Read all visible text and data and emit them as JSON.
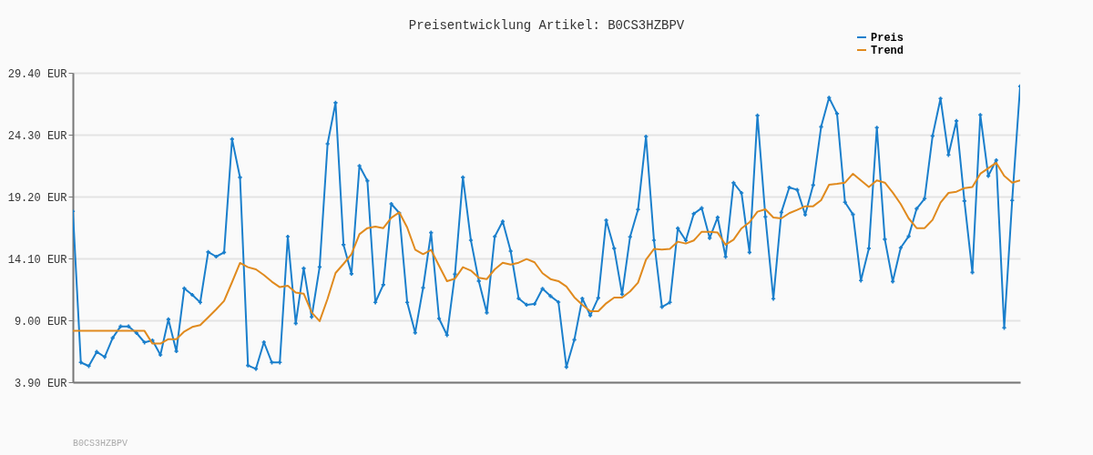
{
  "chart_data": {
    "type": "line",
    "title": "Preisentwicklung Artikel: B0CS3HZBPV",
    "categories": [
      null,
      null,
      null,
      null,
      null,
      null,
      null,
      null,
      null,
      null,
      null,
      null,
      null,
      null,
      null,
      null,
      null,
      null,
      null,
      null,
      null,
      null,
      null,
      null,
      null,
      null,
      null,
      null,
      null,
      null,
      null,
      null,
      null,
      null,
      null,
      null,
      null,
      null,
      null,
      null,
      null,
      null,
      null,
      null,
      null,
      null,
      null,
      null,
      null,
      null,
      null,
      null,
      null,
      null,
      null,
      null,
      null,
      null,
      null,
      null,
      null,
      null,
      null,
      null,
      null,
      null,
      null,
      null,
      null,
      null,
      null,
      null,
      null,
      null,
      null,
      null,
      null,
      null,
      null,
      null,
      null,
      null,
      null,
      null,
      null,
      null,
      null,
      null,
      null,
      null,
      null,
      null,
      null,
      null,
      null,
      null,
      null,
      null,
      null,
      null,
      null,
      null,
      null,
      null,
      null,
      null,
      null,
      null,
      null,
      null,
      null,
      null,
      null,
      null,
      null,
      null,
      null,
      null,
      null,
      null
    ],
    "series": [
      {
        "name": "Preis",
        "color": "#1a7fcc",
        "marker": "cross",
        "values": [
          17.98,
          5.53,
          5.23,
          6.4,
          5.98,
          7.55,
          8.5,
          8.5,
          7.95,
          7.18,
          7.35,
          6.15,
          9.08,
          6.45,
          11.63,
          11.1,
          10.48,
          14.63,
          14.25,
          14.6,
          23.93,
          20.78,
          5.28,
          5.0,
          7.2,
          5.53,
          5.53,
          15.9,
          8.75,
          13.28,
          9.28,
          13.4,
          23.55,
          26.93,
          15.23,
          12.83,
          21.73,
          20.5,
          10.48,
          11.93,
          18.6,
          17.85,
          10.48,
          7.98,
          11.68,
          16.23,
          9.15,
          7.78,
          12.8,
          20.78,
          15.6,
          12.23,
          9.63,
          15.9,
          17.15,
          14.7,
          10.8,
          10.28,
          10.35,
          11.6,
          11.0,
          10.5,
          5.15,
          7.4,
          10.8,
          9.4,
          10.85,
          17.25,
          14.93,
          11.15,
          15.88,
          18.13,
          24.15,
          15.6,
          10.1,
          10.48,
          16.58,
          15.58,
          17.78,
          18.25,
          15.78,
          17.48,
          14.23,
          20.33,
          19.5,
          14.6,
          25.88,
          17.53,
          10.78,
          17.9,
          19.95,
          19.75,
          17.7,
          20.15,
          24.95,
          27.35,
          26.03,
          18.73,
          17.73,
          12.28,
          14.93,
          24.88,
          15.68,
          12.2,
          14.98,
          15.93,
          18.2,
          19.03,
          24.2,
          27.28,
          22.63,
          25.43,
          18.83,
          12.95,
          25.93,
          20.9,
          22.2,
          8.38,
          18.88,
          28.28
        ]
      },
      {
        "name": "Trend",
        "color": "#e08a1e",
        "marker": "none",
        "values": [
          8.13,
          8.13,
          8.13,
          8.13,
          8.13,
          8.13,
          8.13,
          8.13,
          8.13,
          8.13,
          7.08,
          7.08,
          7.45,
          7.45,
          8.08,
          8.45,
          8.6,
          9.25,
          9.9,
          10.6,
          12.15,
          13.73,
          13.38,
          13.2,
          12.73,
          12.18,
          11.73,
          11.85,
          11.28,
          11.2,
          9.65,
          8.93,
          10.78,
          12.9,
          13.65,
          14.45,
          16.1,
          16.6,
          16.73,
          16.6,
          17.45,
          17.9,
          16.65,
          14.83,
          14.45,
          14.8,
          13.5,
          12.23,
          12.43,
          13.38,
          13.1,
          12.5,
          12.4,
          13.2,
          13.75,
          13.6,
          13.75,
          14.05,
          13.78,
          12.88,
          12.4,
          12.23,
          11.78,
          10.9,
          10.28,
          9.75,
          9.75,
          10.4,
          10.88,
          10.88,
          11.38,
          12.1,
          14.0,
          14.88,
          14.83,
          14.88,
          15.48,
          15.33,
          15.58,
          16.3,
          16.3,
          16.23,
          15.23,
          15.65,
          16.58,
          17.08,
          17.95,
          18.15,
          17.48,
          17.4,
          17.83,
          18.1,
          18.4,
          18.4,
          18.9,
          20.18,
          20.25,
          20.35,
          21.08,
          20.53,
          19.98,
          20.53,
          20.35,
          19.53,
          18.58,
          17.4,
          16.6,
          16.6,
          17.28,
          18.7,
          19.5,
          19.6,
          19.9,
          19.98,
          21.08,
          21.53,
          21.98,
          20.9,
          20.35,
          20.53
        ]
      }
    ],
    "ylim": [
      3.9,
      29.4
    ],
    "yticks": [
      {
        "value": 3.9,
        "label": "3.90 EUR"
      },
      {
        "value": 9.0,
        "label": "9.00 EUR"
      },
      {
        "value": 14.1,
        "label": "14.10 EUR"
      },
      {
        "value": 19.2,
        "label": "19.20 EUR"
      },
      {
        "value": 24.3,
        "label": "24.30 EUR"
      },
      {
        "value": 29.4,
        "label": "29.40 EUR"
      }
    ],
    "grid": "y",
    "legend": "top right",
    "tick_labels": "y",
    "line_style": "solid",
    "annotations": [
      "B0CS3HZBPV"
    ]
  }
}
